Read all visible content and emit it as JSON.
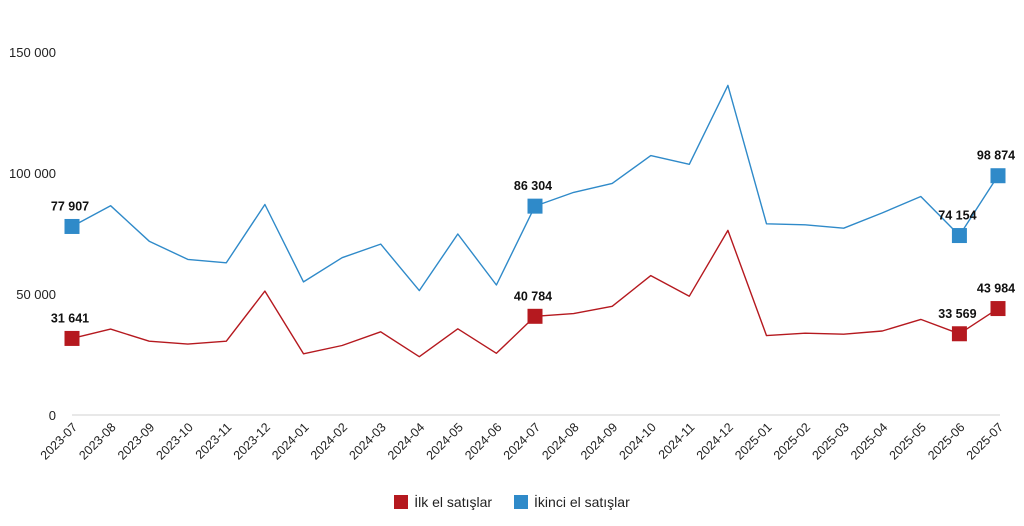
{
  "chart_data": {
    "type": "line",
    "title": "",
    "xlabel": "",
    "ylabel": "",
    "ylim": [
      0,
      150000
    ],
    "yticks": [
      "0",
      "50 000",
      "100 000",
      "150 000"
    ],
    "ytick_values": [
      0,
      50000,
      100000,
      150000
    ],
    "grid": false,
    "legend_position": "bottom-center",
    "categories": [
      "2023-07",
      "2023-08",
      "2023-09",
      "2023-10",
      "2023-11",
      "2023-12",
      "2024-01",
      "2024-02",
      "2024-03",
      "2024-04",
      "2024-05",
      "2024-06",
      "2024-07",
      "2024-08",
      "2024-09",
      "2024-10",
      "2024-11",
      "2024-12",
      "2025-01",
      "2025-02",
      "2025-03",
      "2025-04",
      "2025-05",
      "2025-06",
      "2025-07"
    ],
    "series": [
      {
        "name": "İlk el satışlar",
        "color": "#b5191f",
        "values": [
          31641,
          35500,
          30500,
          29300,
          30500,
          51200,
          25300,
          28700,
          34400,
          24100,
          35600,
          25500,
          40784,
          41900,
          44900,
          57600,
          49100,
          76300,
          32800,
          33800,
          33400,
          34700,
          39500,
          33569,
          43984
        ],
        "labels": [
          {
            "index": 0,
            "text": "31 641"
          },
          {
            "index": 12,
            "text": "40 784"
          },
          {
            "index": 23,
            "text": "33 569"
          },
          {
            "index": 24,
            "text": "43 984"
          }
        ]
      },
      {
        "name": "İkinci el satışlar",
        "color": "#2f8ac9",
        "values": [
          77907,
          86500,
          71800,
          64300,
          62900,
          87000,
          55000,
          65000,
          70600,
          51400,
          74800,
          53700,
          86304,
          92000,
          95700,
          107200,
          103600,
          136200,
          79000,
          78600,
          77200,
          83500,
          90300,
          74154,
          98874
        ],
        "labels": [
          {
            "index": 0,
            "text": "77 907"
          },
          {
            "index": 12,
            "text": "86 304"
          },
          {
            "index": 23,
            "text": "74 154"
          },
          {
            "index": 24,
            "text": "98 874"
          }
        ]
      }
    ]
  }
}
